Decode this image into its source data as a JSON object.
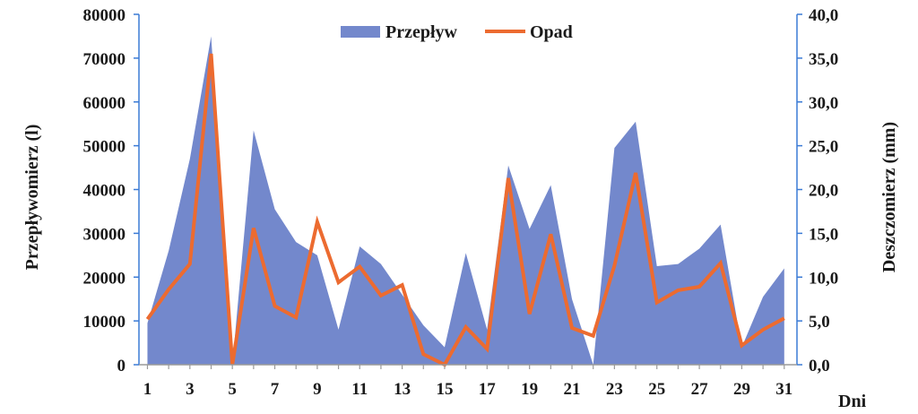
{
  "chart_data": {
    "type": "area",
    "x": [
      1,
      2,
      3,
      4,
      5,
      6,
      7,
      8,
      9,
      10,
      11,
      12,
      13,
      14,
      15,
      16,
      17,
      18,
      19,
      20,
      21,
      22,
      23,
      24,
      25,
      26,
      27,
      28,
      29,
      30,
      31
    ],
    "x_tick_labels": [
      "1",
      "3",
      "5",
      "7",
      "9",
      "11",
      "13",
      "15",
      "17",
      "19",
      "21",
      "23",
      "25",
      "27",
      "29",
      "31"
    ],
    "xlabel": "Dni",
    "ylabel_left": "Przepływomierz (l)",
    "ylabel_right": "Deszczomierz (mm)",
    "ylim_left": [
      0,
      80000
    ],
    "ylim_right": [
      0,
      40
    ],
    "y_left_ticks": [
      "0",
      "10000",
      "20000",
      "30000",
      "40000",
      "50000",
      "60000",
      "70000",
      "80000"
    ],
    "y_right_ticks": [
      "0,0",
      "5,0",
      "10,0",
      "15,0",
      "20,0",
      "25,0",
      "30,0",
      "35,0",
      "40,0"
    ],
    "legend_position": "top-center",
    "grid": false,
    "series": [
      {
        "name": "Przepływ",
        "type": "area",
        "axis": "left",
        "color": "#7388cc",
        "values": [
          9500,
          26000,
          47000,
          75000,
          0,
          53500,
          35500,
          28000,
          25000,
          8000,
          27000,
          23000,
          16000,
          9000,
          4000,
          25500,
          8000,
          45500,
          31000,
          41000,
          15000,
          0,
          49500,
          55500,
          22500,
          23000,
          26500,
          32000,
          4000,
          15500,
          22000
        ]
      },
      {
        "name": "Opad",
        "type": "line",
        "axis": "right",
        "color": "#ec6b30",
        "values": [
          5.2,
          8.6,
          11.5,
          35.5,
          0.0,
          15.6,
          6.7,
          5.4,
          16.3,
          9.4,
          11.2,
          7.9,
          9.1,
          1.2,
          0.0,
          4.3,
          1.8,
          21.3,
          5.8,
          14.9,
          4.2,
          3.3,
          11.3,
          21.9,
          7.1,
          8.5,
          8.9,
          11.6,
          2.2,
          4.0,
          5.3
        ]
      }
    ]
  }
}
